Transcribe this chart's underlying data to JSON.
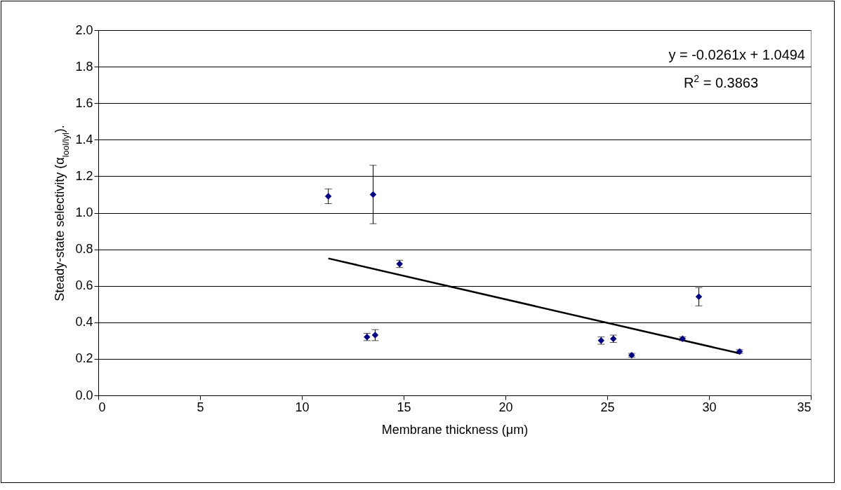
{
  "chart_data": {
    "type": "scatter",
    "xlabel": "Membrane thickness (μm)",
    "ylabel": "Steady-state selectivity (α$_{lool/lyl}$).",
    "xlim": [
      0,
      35
    ],
    "xticks": [
      0,
      5,
      10,
      15,
      20,
      25,
      30,
      35
    ],
    "ylim": [
      0,
      2
    ],
    "yticks": [
      {
        "value": 0,
        "label": "0.0"
      },
      {
        "value": 0.2,
        "label": "0.2"
      },
      {
        "value": 0.4,
        "label": "0.4"
      },
      {
        "value": 0.6,
        "label": "0.6"
      },
      {
        "value": 0.8,
        "label": "0.8"
      },
      {
        "value": 1,
        "label": "1.0"
      },
      {
        "value": 1.2,
        "label": "1.2"
      },
      {
        "value": 1.4,
        "label": "1.4"
      },
      {
        "value": 1.6,
        "label": "1.6"
      },
      {
        "value": 1.8,
        "label": "1.8"
      },
      {
        "value": 2,
        "label": "2.0"
      }
    ],
    "grid": "y",
    "annotations": [
      "y = -0.0261x + 1.0494",
      "R$^{2}$ = 0.3863"
    ],
    "series": [
      {
        "marker": "diamond",
        "color": "#000080",
        "x": [
          11.3,
          13.5,
          14.8,
          13.2,
          13.6,
          24.7,
          25.3,
          26.2,
          28.7,
          29.5,
          31.5
        ],
        "values": [
          1.09,
          1.1,
          0.72,
          0.32,
          0.33,
          0.3,
          0.31,
          0.22,
          0.31,
          0.54,
          0.24
        ],
        "errors": [
          0.04,
          0.16,
          0.02,
          0.02,
          0.03,
          0.02,
          0.02,
          0.01,
          0.01,
          0.05,
          0.01
        ]
      },
      {
        "type": "line",
        "marker": "none",
        "color": "#000000",
        "x": [
          11.3,
          31.5
        ],
        "values": [
          0.75,
          0.23
        ]
      }
    ]
  }
}
